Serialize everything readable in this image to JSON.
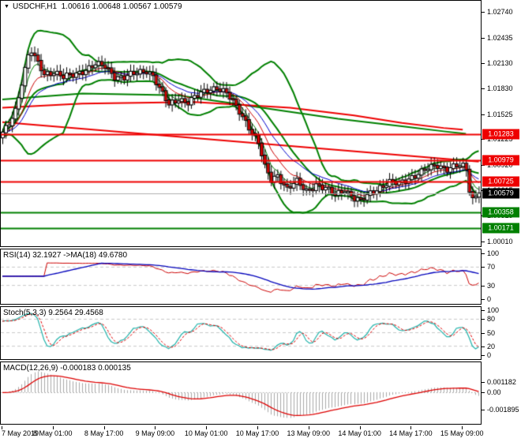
{
  "header": {
    "dropdown_icon": "▼",
    "symbol": "USDCHF,H1",
    "ohlc": "1.00616 1.00648 1.00567 1.00579"
  },
  "colors": {
    "bull_body": "#ffffff",
    "bear_body": "#cc0000",
    "candle_border": "#000000",
    "band_green": "#008000",
    "level_red": "#ee0000",
    "level_green": "#008000",
    "price_line": "#b0b0b0",
    "ma_fast": "#008000",
    "ma_mid": "#cc0000",
    "ma_slow": "#0000cc",
    "rsi_line": "#cc0000",
    "rsi_ma": "#0000bb",
    "stoch_k": "#20b2aa",
    "stoch_d": "#dd0000",
    "macd_hist": "#a9a9a9",
    "macd_signal": "#dd0000",
    "grid_dash": "#c8c8c8",
    "badge_red": "#ee0000",
    "badge_black": "#000000",
    "badge_green": "#008000"
  },
  "price_axis": {
    "ticks": [
      "1.02740",
      "1.02435",
      "1.02130",
      "1.01830",
      "1.01525",
      "1.01225",
      "1.00920",
      "1.00615",
      "1.00315",
      "1.00010"
    ],
    "badges": [
      {
        "text": "1.01283",
        "bg": "badge_red"
      },
      {
        "text": "1.00979",
        "bg": "badge_red"
      },
      {
        "text": "1.00725",
        "bg": "badge_red"
      },
      {
        "text": "1.00579",
        "bg": "badge_black"
      },
      {
        "text": "1.00358",
        "bg": "badge_green"
      },
      {
        "text": "1.00171",
        "bg": "badge_green"
      }
    ]
  },
  "time_axis": {
    "labels": [
      {
        "text": "7 May 2019",
        "i": 0,
        "align": "left"
      },
      {
        "text": "8 May 01:00",
        "i": 16,
        "align": "center"
      },
      {
        "text": "8 May 17:00",
        "i": 32,
        "align": "center"
      },
      {
        "text": "9 May 09:00",
        "i": 48,
        "align": "center"
      },
      {
        "text": "10 May 01:00",
        "i": 64,
        "align": "center"
      },
      {
        "text": "10 May 17:00",
        "i": 80,
        "align": "center"
      },
      {
        "text": "13 May 09:00",
        "i": 96,
        "align": "center"
      },
      {
        "text": "14 May 01:00",
        "i": 112,
        "align": "center"
      },
      {
        "text": "14 May 17:00",
        "i": 128,
        "align": "center"
      },
      {
        "text": "15 May 09:00",
        "i": 144,
        "align": "center"
      }
    ]
  },
  "panels": {
    "rsi": {
      "label": "RSI(14) 32.1927  ->MA(18) 49.6780",
      "ticks": [
        100,
        70,
        30,
        0
      ],
      "dashed_levels": [
        70,
        30
      ],
      "period": 14,
      "value": 32.1927,
      "ma_period": 18,
      "ma_value": 49.678
    },
    "stoch": {
      "label": "Stoch(5,3,3) 9.2564 29.4568",
      "ticks": [
        100,
        80,
        50,
        20,
        0
      ],
      "dashed_levels": [
        80,
        50,
        20
      ],
      "params": "5,3,3",
      "k_value": 9.2564,
      "d_value": 29.4568
    },
    "macd": {
      "label": "MACD(12,26,9) -0.000183 0.000135",
      "tick_top": "0.001182",
      "tick_zero": "0.00",
      "tick_bottom": "-0.001895",
      "params": "12,26,9",
      "value": -0.000183,
      "signal_value": 0.000135
    }
  },
  "chart_data": {
    "type": "candlestick",
    "symbol": "USDCHF",
    "timeframe": "H1",
    "price_range": {
      "top": 1.0281,
      "bottom": 0.9995
    },
    "candle_count": 150,
    "close_anchors": [
      [
        0,
        1.0129
      ],
      [
        2,
        1.0141
      ],
      [
        4,
        1.0158
      ],
      [
        6,
        1.019
      ],
      [
        8,
        1.0221
      ],
      [
        9,
        1.0226
      ],
      [
        11,
        1.0213
      ],
      [
        13,
        1.0201
      ],
      [
        16,
        1.0203
      ],
      [
        19,
        1.0196
      ],
      [
        22,
        1.0199
      ],
      [
        26,
        1.0206
      ],
      [
        29,
        1.0211
      ],
      [
        32,
        1.0209
      ],
      [
        35,
        1.0198
      ],
      [
        38,
        1.0196
      ],
      [
        41,
        1.02
      ],
      [
        45,
        1.0205
      ],
      [
        47,
        1.0199
      ],
      [
        49,
        1.0183
      ],
      [
        52,
        1.0163
      ],
      [
        55,
        1.0171
      ],
      [
        58,
        1.0167
      ],
      [
        61,
        1.0174
      ],
      [
        64,
        1.0181
      ],
      [
        67,
        1.0185
      ],
      [
        70,
        1.0177
      ],
      [
        73,
        1.0161
      ],
      [
        76,
        1.0145
      ],
      [
        78,
        1.0131
      ],
      [
        80,
        1.0118
      ],
      [
        82,
        1.0089
      ],
      [
        84,
        1.0074
      ],
      [
        86,
        1.008
      ],
      [
        89,
        1.0064
      ],
      [
        92,
        1.0071
      ],
      [
        95,
        1.0061
      ],
      [
        98,
        1.0069
      ],
      [
        101,
        1.0063
      ],
      [
        104,
        1.0056
      ],
      [
        107,
        1.0063
      ],
      [
        110,
        1.0052
      ],
      [
        112,
        1.0048
      ],
      [
        115,
        1.0058
      ],
      [
        118,
        1.0066
      ],
      [
        121,
        1.0071
      ],
      [
        124,
        1.0069
      ],
      [
        127,
        1.0076
      ],
      [
        130,
        1.0082
      ],
      [
        133,
        1.0087
      ],
      [
        136,
        1.0091
      ],
      [
        139,
        1.0088
      ],
      [
        142,
        1.0091
      ],
      [
        144,
        1.0089
      ],
      [
        145,
        1.0086
      ],
      [
        146,
        1.0062
      ],
      [
        147,
        1.0052
      ],
      [
        148,
        1.0055
      ],
      [
        149,
        1.00579
      ]
    ],
    "levels": [
      {
        "price": 1.01283,
        "color": "level_red",
        "width": 2
      },
      {
        "price": 1.00979,
        "color": "level_red",
        "width": 2
      },
      {
        "price": 1.00725,
        "color": "level_red",
        "width": 2
      },
      {
        "price": 1.00358,
        "color": "level_green",
        "width": 2
      },
      {
        "price": 1.00171,
        "color": "level_green",
        "width": 2
      }
    ],
    "current_price_line": {
      "price": 1.00579
    },
    "trendlines": [
      {
        "points": [
          [
            0,
            1.0143
          ],
          [
            149,
            1.0096
          ]
        ],
        "color": "level_red",
        "width": 2
      }
    ],
    "red_ma_points": [
      [
        0,
        1.016
      ],
      [
        25,
        1.0165
      ],
      [
        60,
        1.0167
      ],
      [
        90,
        1.016
      ],
      [
        110,
        1.0151
      ],
      [
        125,
        1.0142
      ],
      [
        138,
        1.0136
      ],
      [
        144,
        1.0134
      ]
    ],
    "green_ma_points": [
      [
        0,
        1.017
      ],
      [
        25,
        1.0177
      ],
      [
        55,
        1.0175
      ],
      [
        85,
        1.0158
      ],
      [
        105,
        1.0147
      ],
      [
        125,
        1.0138
      ],
      [
        138,
        1.0132
      ],
      [
        145,
        1.0129
      ]
    ],
    "bollinger": {
      "period": 20,
      "deviation": 2
    },
    "overlay_ma_periods": {
      "fast": 5,
      "mid": 10,
      "slow": 18
    }
  }
}
